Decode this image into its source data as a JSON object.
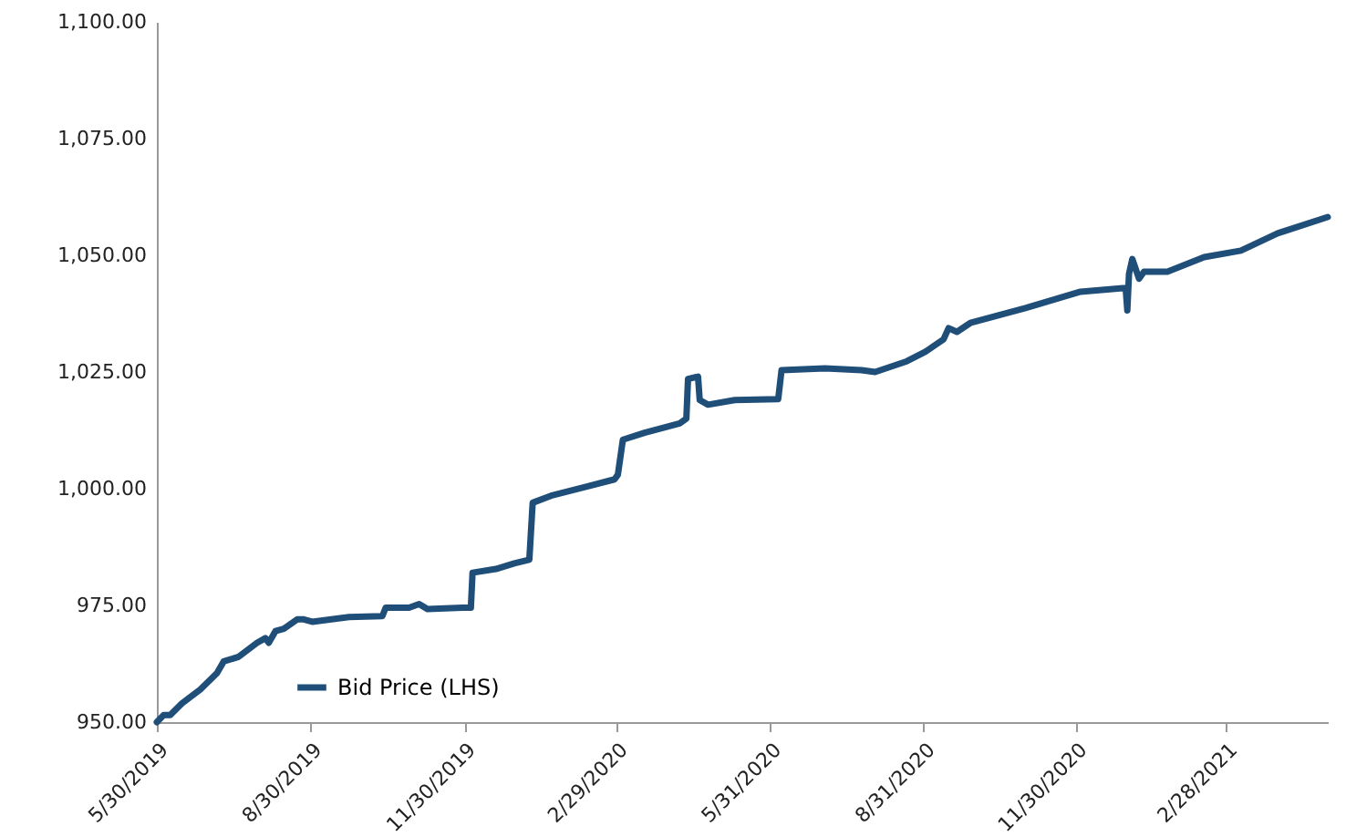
{
  "chart_data": {
    "type": "line",
    "x": [
      "2019-05-30",
      "2019-06-03",
      "2019-06-07",
      "2019-06-14",
      "2019-06-25",
      "2019-07-05",
      "2019-07-09",
      "2019-07-18",
      "2019-07-29",
      "2019-08-03",
      "2019-08-05",
      "2019-08-09",
      "2019-08-14",
      "2019-08-22",
      "2019-08-26",
      "2019-08-31",
      "2019-09-22",
      "2019-10-12",
      "2019-10-14",
      "2019-10-28",
      "2019-11-03",
      "2019-11-08",
      "2019-11-29",
      "2019-12-04",
      "2019-12-05",
      "2019-12-19",
      "2019-12-30",
      "2020-01-08",
      "2020-01-10",
      "2020-01-21",
      "2020-02-12",
      "2020-02-28",
      "2020-03-01",
      "2020-03-04",
      "2020-03-17",
      "2020-04-07",
      "2020-04-11",
      "2020-04-12",
      "2020-04-18",
      "2020-04-19",
      "2020-04-24",
      "2020-05-10",
      "2020-06-05",
      "2020-06-07",
      "2020-07-03",
      "2020-07-25",
      "2020-08-02",
      "2020-08-21",
      "2020-09-01",
      "2020-09-12",
      "2020-09-15",
      "2020-09-20",
      "2020-09-28",
      "2020-10-31",
      "2020-12-03",
      "2020-12-30",
      "2020-12-31",
      "2021-01-01",
      "2021-01-03",
      "2021-01-07",
      "2021-01-10",
      "2021-01-24",
      "2021-02-15",
      "2021-03-09",
      "2021-03-31",
      "2021-04-30"
    ],
    "series": [
      {
        "name": "Bid Price (LHS)",
        "color": "#1f4e79",
        "values": [
          950.0,
          951.5,
          951.5,
          954,
          957,
          960.5,
          963,
          964,
          967,
          968,
          967,
          969.5,
          970,
          972,
          972,
          971.5,
          972.5,
          972.7,
          974.5,
          974.5,
          975.3,
          974.2,
          974.5,
          974.5,
          982,
          982.8,
          984,
          984.8,
          997,
          998.5,
          1000.5,
          1002,
          1003,
          1010.5,
          1012,
          1014,
          1015,
          1023.5,
          1024,
          1019,
          1018,
          1019,
          1019.2,
          1025.4,
          1025.8,
          1025.4,
          1025,
          1027.3,
          1029.3,
          1032,
          1034.4,
          1033.6,
          1035.5,
          1038.7,
          1042.2,
          1043,
          1038.2,
          1046,
          1049.2,
          1045,
          1046.5,
          1046.5,
          1049.6,
          1051,
          1054.7,
          1058.2
        ]
      }
    ],
    "xlim": [
      "2019-05-30",
      "2021-04-30"
    ],
    "xticks": [
      {
        "value": "2019-05-30",
        "label": "5/30/2019"
      },
      {
        "value": "2019-08-30",
        "label": "8/30/2019"
      },
      {
        "value": "2019-11-30",
        "label": "11/30/2019"
      },
      {
        "value": "2020-02-29",
        "label": "2/29/2020"
      },
      {
        "value": "2020-05-31",
        "label": "5/31/2020"
      },
      {
        "value": "2020-08-31",
        "label": "8/31/2020"
      },
      {
        "value": "2020-11-30",
        "label": "11/30/2020"
      },
      {
        "value": "2021-02-28",
        "label": "2/28/2021"
      }
    ],
    "ylim": [
      950,
      1100
    ],
    "yticks": [
      {
        "value": 950,
        "label": "950.00"
      },
      {
        "value": 975,
        "label": "975.00"
      },
      {
        "value": 1000,
        "label": "1,000.00"
      },
      {
        "value": 1025,
        "label": "1,025.00"
      },
      {
        "value": 1050,
        "label": "1,050.00"
      },
      {
        "value": 1075,
        "label": "1,075.00"
      },
      {
        "value": 1100,
        "label": "1,100.00"
      }
    ],
    "grid": false,
    "legend": "bottom left",
    "marker": "none",
    "line_style": "solid"
  }
}
